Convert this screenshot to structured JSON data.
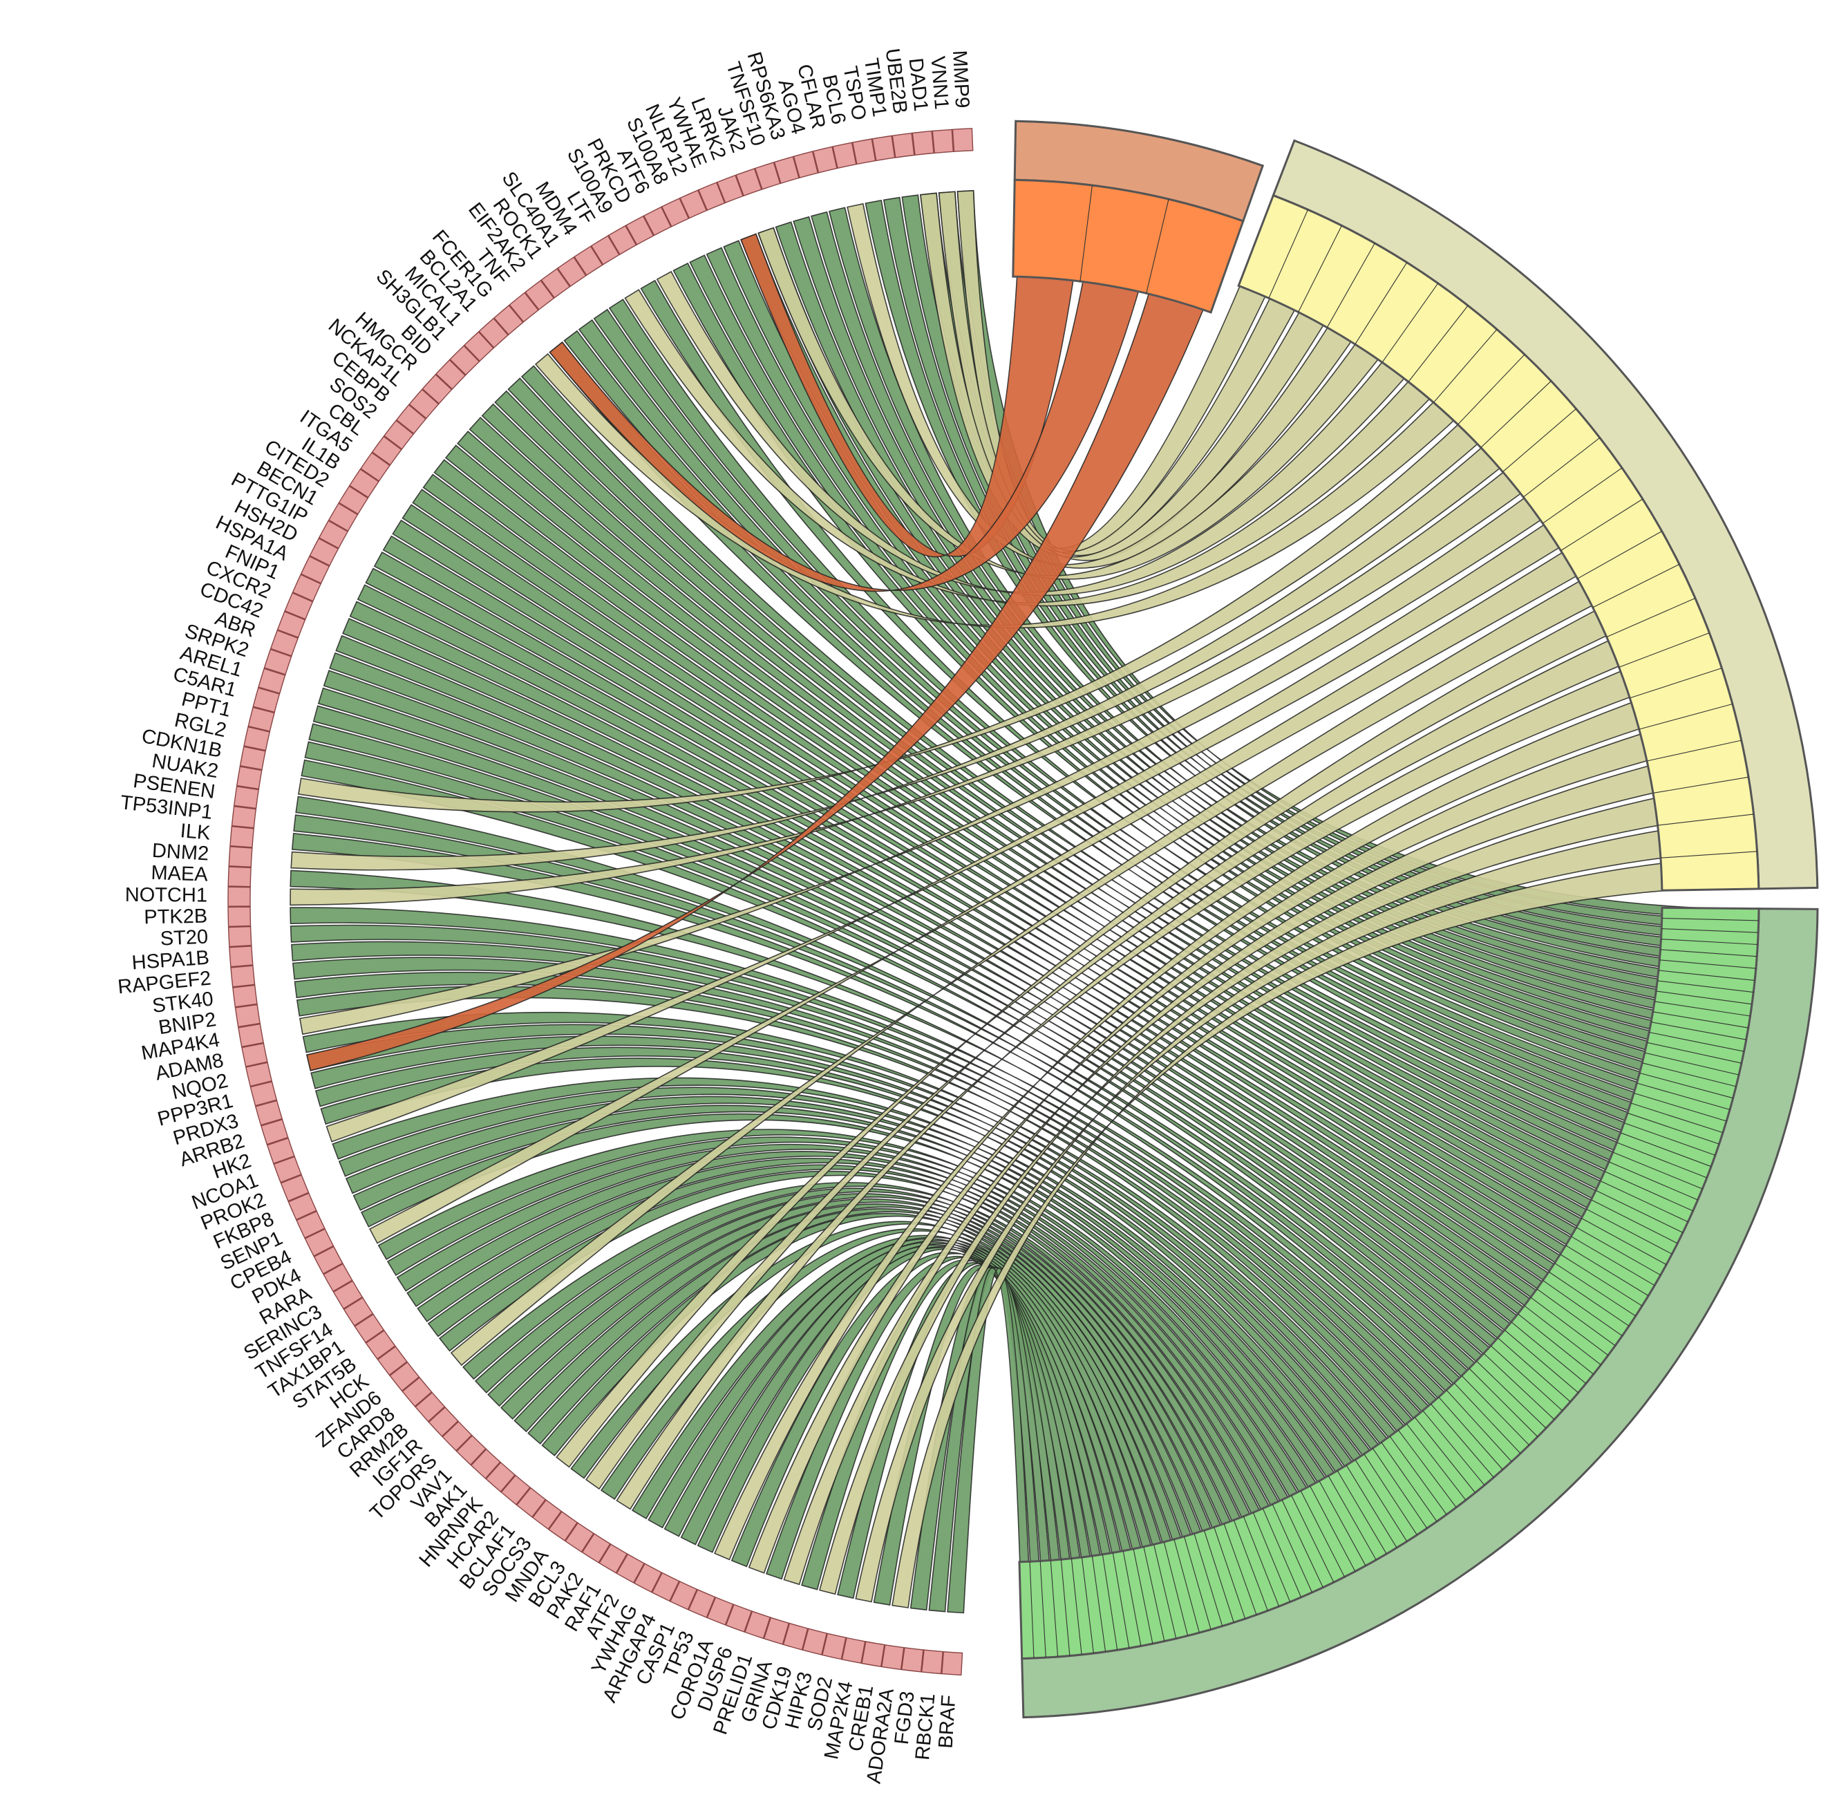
{
  "genes": [
    "MMP9",
    "VNN1",
    "DAD1",
    "UBE2B",
    "TIMP1",
    "TSPO",
    "BCL6",
    "CFLAR",
    "AGO4",
    "RPS6KA3",
    "TNFSF10",
    "JAK2",
    "LRRK2",
    "YWHAE",
    "NLRP12",
    "S100A8",
    "ATF6",
    "PRKCD",
    "S100A9",
    "LTF",
    "MDM4",
    "SLC40A1",
    "ROCK1",
    "EIF2AK2",
    "TNF",
    "FCER1G",
    "BCL2A1",
    "MICAL1",
    "SH3GLB1",
    "BID",
    "HMGCR",
    "NCKAP1L",
    "CEBPB",
    "SOS2",
    "CBL",
    "ITGA5",
    "IL1B",
    "CITED2",
    "BECN1",
    "PTTG1IP",
    "HSH2D",
    "HSPA1A",
    "FNIP1",
    "CXCR2",
    "CDC42",
    "ABR",
    "SRPK2",
    "AREL1",
    "C5AR1",
    "PPT1",
    "RGL2",
    "CDKN1B",
    "NUAK2",
    "PSENEN",
    "TP53INP1",
    "ILK",
    "DNM2",
    "MAEA",
    "NOTCH1",
    "PTK2B",
    "ST20",
    "HSPA1B",
    "RAPGEF2",
    "STK40",
    "BNIP2",
    "MAP4K4",
    "ADAM8",
    "NQO2",
    "PPP3R1",
    "PRDX3",
    "ARRB2",
    "HK2",
    "NCOA1",
    "PROK2",
    "FKBP8",
    "SENP1",
    "CPEB4",
    "PDK4",
    "RARA",
    "SERINC3",
    "TNFSF14",
    "TAX1BP1",
    "STAT5B",
    "HCK",
    "ZFAND6",
    "CARD8",
    "RRM2B",
    "IGF1R",
    "TOPORS",
    "VAV1",
    "BAK1",
    "HNRNPK",
    "HCAR2",
    "BCLAF1",
    "SOCS3",
    "MNDA",
    "BCL3",
    "PAK2",
    "RAF1",
    "ATF2",
    "YWHAG",
    "ARHGAP4",
    "CASP1",
    "TP53",
    "CORO1A",
    "DUSP6",
    "PRELID1",
    "GRINA",
    "CDK19",
    "HIPK3",
    "SOD2",
    "MAP2K4",
    "CREB1",
    "ADORA2A",
    "FGD3",
    "RBCK1",
    "BRAF"
  ],
  "memberships": [
    "B+C",
    "B+C",
    "B+C",
    "C",
    "C",
    "C",
    "B",
    "C",
    "C",
    "C",
    "C",
    "B+C",
    "A+C",
    "C",
    "C",
    "C",
    "C",
    "B",
    "C",
    "B",
    "C",
    "C",
    "C",
    "C",
    "A+C",
    "B",
    "C",
    "C",
    "C",
    "C",
    "C",
    "C",
    "C",
    "C",
    "C",
    "C",
    "C",
    "C",
    "C",
    "C",
    "C",
    "C",
    "C",
    "C",
    "C",
    "C",
    "C",
    "C",
    "C",
    "C",
    "C",
    "C",
    "B",
    "C",
    "C",
    "C",
    "B",
    "C",
    "B",
    "C",
    "C",
    "C",
    "C",
    "C",
    "C",
    "B",
    "C",
    "A+C",
    "C",
    "C",
    "C",
    "B",
    "C",
    "C",
    "C",
    "C",
    "C",
    "B",
    "C",
    "C",
    "C",
    "C",
    "C",
    "C",
    "C",
    "B",
    "C",
    "C",
    "C",
    "C",
    "C",
    "C",
    "C",
    "B",
    "C",
    "B",
    "C",
    "B",
    "C",
    "C",
    "C",
    "C",
    "C",
    "B",
    "C",
    "B",
    "C",
    "B",
    "C",
    "B",
    "C",
    "B",
    "C",
    "B",
    "C",
    "C",
    "C"
  ],
  "colors": {
    "sector_A_outer": "#e29f7c",
    "sector_A_inner": "#ff8c4a",
    "sector_B_outer": "#e0e1b9",
    "sector_B_inner": "#fbf6a8",
    "sector_C_outer": "#a2c89e",
    "sector_C_inner": "#8fdb87",
    "gene_block": "#e7a2a2",
    "chord_C": "#6e9e68",
    "chord_B": "#cfcf9c",
    "chord_A": "#d4663c"
  }
}
